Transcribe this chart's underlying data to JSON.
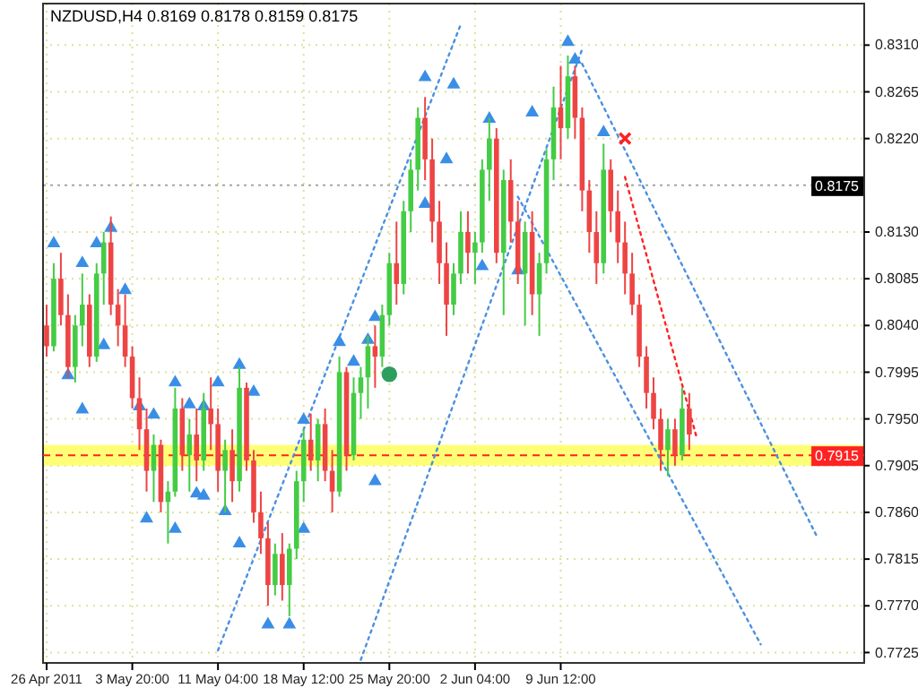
{
  "chart_data": {
    "type": "candlestick",
    "title": "NZDUSD,H4  0.8169 0.8178 0.8159 0.8175",
    "ylim": [
      0.7715,
      0.835
    ],
    "categories": [
      "26 Apr 2011",
      null,
      null,
      null,
      null,
      null,
      null,
      null,
      null,
      null,
      null,
      null,
      "3 May 20:00",
      null,
      null,
      null,
      null,
      null,
      null,
      null,
      null,
      null,
      null,
      null,
      "11 May 04:00",
      null,
      null,
      null,
      null,
      null,
      null,
      null,
      null,
      null,
      null,
      null,
      "18 May 12:00",
      null,
      null,
      null,
      null,
      null,
      null,
      null,
      null,
      null,
      null,
      null,
      "25 May 20:00",
      null,
      null,
      null,
      null,
      null,
      null,
      null,
      null,
      null,
      null,
      null,
      "2 Jun 04:00",
      null,
      null,
      null,
      null,
      null,
      null,
      null,
      null,
      null,
      null,
      null,
      "9 Jun 12:00",
      null,
      null,
      null,
      null,
      null,
      null,
      null,
      null,
      null,
      null,
      null,
      null,
      null,
      null,
      null,
      null,
      null,
      null,
      null,
      null,
      null,
      null,
      null,
      null,
      null,
      null,
      null,
      null,
      null,
      null,
      null,
      null,
      null,
      null,
      null,
      null,
      null,
      null,
      null,
      null,
      null,
      null
    ],
    "yticks": [
      {
        "value": 0.831,
        "label": "0.8310"
      },
      0.8265,
      {
        "value": 0.822,
        "label": "0.8220"
      },
      {
        "value": 0.813,
        "label": "0.8130"
      },
      0.8085,
      {
        "value": 0.804,
        "label": "0.8040"
      },
      0.7995,
      {
        "value": 0.795,
        "label": "0.7950"
      },
      0.7905,
      {
        "value": 0.786,
        "label": "0.7860"
      },
      0.7815,
      {
        "value": 0.777,
        "label": "0.7770"
      },
      0.7725
    ],
    "grid": true,
    "ohlc": [
      [
        0.804,
        0.806,
        0.801,
        0.802
      ],
      [
        0.802,
        0.81,
        0.8015,
        0.8085
      ],
      [
        0.8085,
        0.811,
        0.804,
        0.805
      ],
      [
        0.805,
        0.807,
        0.799,
        0.8
      ],
      [
        0.8,
        0.805,
        0.7985,
        0.804
      ],
      [
        0.804,
        0.809,
        0.802,
        0.806
      ],
      [
        0.806,
        0.807,
        0.8,
        0.801
      ],
      [
        0.801,
        0.81,
        0.8005,
        0.809
      ],
      [
        0.809,
        0.813,
        0.806,
        0.812
      ],
      [
        0.812,
        0.8145,
        0.805,
        0.806
      ],
      [
        0.806,
        0.8075,
        0.802,
        0.804
      ],
      [
        0.804,
        0.807,
        0.8,
        0.801
      ],
      [
        0.801,
        0.802,
        0.796,
        0.797
      ],
      [
        0.797,
        0.799,
        0.792,
        0.794
      ],
      [
        0.794,
        0.796,
        0.788,
        0.79
      ],
      [
        0.79,
        0.7935,
        0.787,
        0.7925
      ],
      [
        0.7925,
        0.793,
        0.786,
        0.787
      ],
      [
        0.787,
        0.789,
        0.783,
        0.788
      ],
      [
        0.788,
        0.798,
        0.7875,
        0.796
      ],
      [
        0.796,
        0.797,
        0.79,
        0.7915
      ],
      [
        0.7915,
        0.795,
        0.788,
        0.7935
      ],
      [
        0.7935,
        0.796,
        0.789,
        0.791
      ],
      [
        0.791,
        0.7975,
        0.79,
        0.796
      ],
      [
        0.796,
        0.799,
        0.792,
        0.7945
      ],
      [
        0.7945,
        0.796,
        0.788,
        0.79
      ],
      [
        0.79,
        0.793,
        0.786,
        0.792
      ],
      [
        0.792,
        0.794,
        0.787,
        0.789
      ],
      [
        0.789,
        0.8,
        0.788,
        0.798
      ],
      [
        0.798,
        0.7985,
        0.79,
        0.791
      ],
      [
        0.791,
        0.792,
        0.785,
        0.786
      ],
      [
        0.786,
        0.788,
        0.782,
        0.7835
      ],
      [
        0.7835,
        0.785,
        0.777,
        0.779
      ],
      [
        0.779,
        0.783,
        0.778,
        0.782
      ],
      [
        0.782,
        0.784,
        0.7775,
        0.779
      ],
      [
        0.779,
        0.783,
        0.776,
        0.7825
      ],
      [
        0.7825,
        0.79,
        0.7815,
        0.789
      ],
      [
        0.789,
        0.794,
        0.787,
        0.793
      ],
      [
        0.793,
        0.7955,
        0.79,
        0.791
      ],
      [
        0.791,
        0.795,
        0.789,
        0.7945
      ],
      [
        0.7945,
        0.796,
        0.789,
        0.79
      ],
      [
        0.79,
        0.792,
        0.786,
        0.788
      ],
      [
        0.788,
        0.801,
        0.7875,
        0.7995
      ],
      [
        0.7995,
        0.8,
        0.79,
        0.7915
      ],
      [
        0.7915,
        0.799,
        0.791,
        0.7975
      ],
      [
        0.7975,
        0.8,
        0.795,
        0.799
      ],
      [
        0.799,
        0.803,
        0.796,
        0.802
      ],
      [
        0.802,
        0.804,
        0.798,
        0.801
      ],
      [
        0.801,
        0.806,
        0.8,
        0.805
      ],
      [
        0.805,
        0.811,
        0.804,
        0.81
      ],
      [
        0.81,
        0.814,
        0.806,
        0.808
      ],
      [
        0.808,
        0.816,
        0.807,
        0.815
      ],
      [
        0.815,
        0.82,
        0.813,
        0.819
      ],
      [
        0.819,
        0.825,
        0.817,
        0.824
      ],
      [
        0.824,
        0.826,
        0.818,
        0.82
      ],
      [
        0.82,
        0.822,
        0.812,
        0.814
      ],
      [
        0.814,
        0.816,
        0.808,
        0.81
      ],
      [
        0.81,
        0.812,
        0.803,
        0.806
      ],
      [
        0.806,
        0.81,
        0.805,
        0.809
      ],
      [
        0.809,
        0.815,
        0.808,
        0.813
      ],
      [
        0.813,
        0.815,
        0.809,
        0.811
      ],
      [
        0.811,
        0.813,
        0.808,
        0.812
      ],
      [
        0.812,
        0.82,
        0.811,
        0.819
      ],
      [
        0.819,
        0.824,
        0.816,
        0.822
      ],
      [
        0.822,
        0.823,
        0.81,
        0.811
      ],
      [
        0.811,
        0.819,
        0.805,
        0.818
      ],
      [
        0.818,
        0.82,
        0.812,
        0.814
      ],
      [
        0.814,
        0.816,
        0.808,
        0.809
      ],
      [
        0.809,
        0.814,
        0.804,
        0.813
      ],
      [
        0.813,
        0.815,
        0.805,
        0.807
      ],
      [
        0.807,
        0.811,
        0.803,
        0.81
      ],
      [
        0.81,
        0.821,
        0.809,
        0.82
      ],
      [
        0.82,
        0.827,
        0.818,
        0.825
      ],
      [
        0.825,
        0.829,
        0.82,
        0.823
      ],
      [
        0.823,
        0.83,
        0.822,
        0.828
      ],
      [
        0.828,
        0.829,
        0.822,
        0.824
      ],
      [
        0.824,
        0.825,
        0.815,
        0.817
      ],
      [
        0.817,
        0.818,
        0.811,
        0.813
      ],
      [
        0.813,
        0.815,
        0.808,
        0.81
      ],
      [
        0.81,
        0.8215,
        0.809,
        0.819
      ],
      [
        0.819,
        0.82,
        0.813,
        0.815
      ],
      [
        0.815,
        0.817,
        0.81,
        0.812
      ],
      [
        0.812,
        0.814,
        0.807,
        0.809
      ],
      [
        0.809,
        0.811,
        0.805,
        0.806
      ],
      [
        0.806,
        0.807,
        0.8,
        0.801
      ],
      [
        0.801,
        0.802,
        0.796,
        0.7975
      ],
      [
        0.7975,
        0.799,
        0.794,
        0.795
      ],
      [
        0.795,
        0.796,
        0.79,
        0.792
      ],
      [
        0.792,
        0.795,
        0.7895,
        0.794
      ],
      [
        0.794,
        0.795,
        0.7905,
        0.7915
      ],
      [
        0.7915,
        0.798,
        0.791,
        0.796
      ],
      [
        0.796,
        0.7975,
        0.792,
        0.7935
      ],
      null,
      null,
      null,
      null,
      null,
      null,
      null,
      null,
      null,
      null,
      null,
      null,
      null,
      null,
      null,
      null,
      null,
      null,
      null,
      null,
      null,
      null,
      null,
      null
    ],
    "colors": [
      "#ee4444",
      "#44cc44",
      "#ee4444",
      "#ee4444",
      "#44cc44",
      "#44cc44",
      "#ee4444",
      "#44cc44",
      "#44cc44",
      "#ee4444",
      "#ee4444",
      "#ee4444",
      "#ee4444",
      "#ee4444",
      "#ee4444",
      "#44cc44",
      "#ee4444",
      "#44cc44",
      "#44cc44",
      "#ee4444",
      "#44cc44",
      "#ee4444",
      "#44cc44",
      "#ee4444",
      "#ee4444",
      "#44cc44",
      "#ee4444",
      "#44cc44",
      "#ee4444",
      "#ee4444",
      "#ee4444",
      "#ee4444",
      "#44cc44",
      "#ee4444",
      "#44cc44",
      "#44cc44",
      "#44cc44",
      "#ee4444",
      "#44cc44",
      "#ee4444",
      "#ee4444",
      "#44cc44",
      "#ee4444",
      "#44cc44",
      "#44cc44",
      "#44cc44",
      "#ee4444",
      "#44cc44",
      "#44cc44",
      "#ee4444",
      "#44cc44",
      "#44cc44",
      "#44cc44",
      "#ee4444",
      "#ee4444",
      "#ee4444",
      "#ee4444",
      "#44cc44",
      "#44cc44",
      "#ee4444",
      "#44cc44",
      "#44cc44",
      "#44cc44",
      "#ee4444",
      "#44cc44",
      "#ee4444",
      "#ee4444",
      "#44cc44",
      "#ee4444",
      "#44cc44",
      "#44cc44",
      "#44cc44",
      "#ee4444",
      "#44cc44",
      "#ee4444",
      "#ee4444",
      "#ee4444",
      "#ee4444",
      "#44cc44",
      "#ee4444",
      "#ee4444",
      "#ee4444",
      "#ee4444",
      "#ee4444",
      "#ee4444",
      "#ee4444",
      "#ee4444",
      "#44cc44",
      "#ee4444",
      "#44cc44",
      "#ee4444",
      null,
      null,
      null,
      null,
      null,
      null,
      null,
      null,
      null,
      null,
      null,
      null,
      null,
      null,
      null,
      null,
      null,
      null,
      null,
      null,
      null,
      null,
      null,
      null
    ],
    "series": [
      {
        "type": "line",
        "color": "#4a90e2",
        "line_style": "dotted",
        "values": [
          null,
          null,
          null,
          null,
          null,
          null,
          null,
          null,
          null,
          null,
          null,
          null,
          null,
          null,
          null,
          null,
          null,
          null,
          null,
          null,
          null,
          null,
          null,
          null,
          0.7727,
          null,
          null,
          null,
          null,
          null,
          null,
          null,
          null,
          null,
          null,
          null,
          null,
          null,
          null,
          null,
          null,
          null,
          null,
          null,
          null,
          null,
          null,
          null,
          null,
          null,
          null,
          null,
          null,
          null,
          null,
          null,
          null,
          null,
          0.833,
          null,
          null,
          null,
          null,
          null,
          null,
          null,
          null,
          null,
          null,
          null,
          null,
          null,
          null,
          null,
          null,
          null,
          null,
          null,
          null,
          null,
          null,
          null,
          null,
          null,
          null,
          null,
          null,
          null,
          null,
          null,
          null,
          null,
          null,
          null,
          null,
          null,
          null,
          null,
          null,
          null,
          null,
          null,
          null,
          null,
          null,
          null,
          null,
          null,
          null,
          null,
          null,
          null,
          null,
          null,
          null
        ]
      },
      {
        "type": "line",
        "color": "#4a90e2",
        "line_style": "dotted",
        "values": [
          null,
          null,
          null,
          null,
          null,
          null,
          null,
          null,
          null,
          null,
          null,
          null,
          null,
          null,
          null,
          null,
          null,
          null,
          null,
          null,
          null,
          null,
          null,
          null,
          null,
          null,
          null,
          null,
          null,
          null,
          null,
          null,
          null,
          null,
          null,
          null,
          null,
          null,
          null,
          null,
          null,
          null,
          null,
          null,
          0.7718,
          null,
          null,
          null,
          null,
          null,
          null,
          null,
          null,
          null,
          null,
          null,
          null,
          null,
          null,
          null,
          null,
          null,
          null,
          null,
          null,
          null,
          null,
          null,
          null,
          null,
          null,
          null,
          null,
          null,
          null,
          0.8306,
          null,
          null,
          null,
          null,
          null,
          null,
          null,
          null,
          null,
          null,
          null,
          null,
          null,
          null,
          null,
          null,
          null,
          null,
          null,
          null,
          null,
          null,
          null,
          null,
          null,
          null,
          null,
          null,
          null,
          null,
          null,
          null,
          null,
          null,
          null,
          null,
          null,
          null,
          null
        ]
      },
      {
        "type": "line",
        "color": "#4a90e2",
        "line_style": "dotted",
        "values": [
          null,
          null,
          null,
          null,
          null,
          null,
          null,
          null,
          null,
          null,
          null,
          null,
          null,
          null,
          null,
          null,
          null,
          null,
          null,
          null,
          null,
          null,
          null,
          null,
          null,
          null,
          null,
          null,
          null,
          null,
          null,
          null,
          null,
          null,
          null,
          null,
          null,
          null,
          null,
          null,
          null,
          null,
          null,
          null,
          null,
          null,
          null,
          null,
          null,
          null,
          null,
          null,
          null,
          null,
          null,
          null,
          null,
          null,
          null,
          null,
          null,
          null,
          null,
          null,
          null,
          null,
          null,
          null,
          null,
          null,
          null,
          null,
          null,
          null,
          null,
          0.8292,
          null,
          null,
          null,
          null,
          null,
          null,
          null,
          null,
          null,
          null,
          null,
          null,
          null,
          null,
          null,
          null,
          null,
          null,
          null,
          null,
          null,
          null,
          null,
          null,
          null,
          null,
          null,
          null,
          null,
          null,
          null,
          null,
          0.7835,
          null,
          null,
          null,
          null,
          null,
          null
        ]
      },
      {
        "type": "line",
        "color": "#4a90e2",
        "line_style": "dotted",
        "values": [
          null,
          null,
          null,
          null,
          null,
          null,
          null,
          null,
          null,
          null,
          null,
          null,
          null,
          null,
          null,
          null,
          null,
          null,
          null,
          null,
          null,
          null,
          null,
          null,
          null,
          null,
          null,
          null,
          null,
          null,
          null,
          null,
          null,
          null,
          null,
          null,
          null,
          null,
          null,
          null,
          null,
          null,
          null,
          null,
          null,
          null,
          null,
          null,
          null,
          null,
          null,
          null,
          null,
          null,
          null,
          null,
          null,
          null,
          null,
          null,
          null,
          null,
          null,
          null,
          null,
          null,
          0.8164,
          null,
          null,
          null,
          null,
          null,
          null,
          null,
          null,
          null,
          null,
          null,
          null,
          null,
          null,
          null,
          null,
          null,
          null,
          null,
          null,
          null,
          null,
          null,
          null,
          null,
          null,
          null,
          null,
          null,
          null,
          null,
          null,
          null,
          0.7733,
          null,
          null,
          null,
          null,
          null,
          null,
          null,
          null,
          null,
          null,
          null,
          null,
          null,
          null
        ]
      },
      {
        "type": "line",
        "color": "#ff2222",
        "line_style": "dotted",
        "values": [
          null,
          null,
          null,
          null,
          null,
          null,
          null,
          null,
          null,
          null,
          null,
          null,
          null,
          null,
          null,
          null,
          null,
          null,
          null,
          null,
          null,
          null,
          null,
          null,
          null,
          null,
          null,
          null,
          null,
          null,
          null,
          null,
          null,
          null,
          null,
          null,
          null,
          null,
          null,
          null,
          null,
          null,
          null,
          null,
          null,
          null,
          null,
          null,
          null,
          null,
          null,
          null,
          null,
          null,
          null,
          null,
          null,
          null,
          null,
          null,
          null,
          null,
          null,
          null,
          null,
          null,
          null,
          null,
          null,
          null,
          null,
          null,
          null,
          null,
          null,
          null,
          null,
          null,
          null,
          null,
          null,
          0.8183,
          null,
          null,
          null,
          null,
          null,
          null,
          null,
          null,
          null,
          0.7933,
          null,
          null,
          null,
          null,
          null,
          null,
          null,
          null,
          null,
          null,
          null,
          null,
          null,
          null,
          null,
          null,
          null,
          null,
          null,
          null,
          null,
          null,
          null
        ]
      },
      {
        "type": "scatter",
        "color": "#3a8ee6",
        "marker": "triangle",
        "values": [
          null,
          0.8119,
          null,
          null,
          null,
          0.81,
          null,
          0.8119,
          null,
          0.8134,
          null,
          0.8074,
          null,
          0.7962,
          null,
          0.7954,
          null,
          null,
          0.7985,
          null,
          0.7964,
          null,
          0.7962,
          null,
          0.7985,
          null,
          null,
          0.8002,
          null,
          0.7976,
          null,
          null,
          null,
          null,
          null,
          null,
          0.7949,
          null,
          null,
          null,
          null,
          0.8024,
          null,
          0.8005,
          null,
          0.8026,
          0.8048,
          null,
          null,
          null,
          null,
          null,
          null,
          0.8279,
          null,
          null,
          0.82,
          0.8272,
          null,
          null,
          null,
          null,
          0.8239,
          null,
          null,
          null,
          null,
          null,
          0.8245,
          null,
          null,
          null,
          null,
          0.8313,
          0.8296,
          null,
          null,
          null,
          0.8226,
          null,
          null,
          null,
          null,
          null,
          null,
          null,
          null,
          null,
          null,
          null,
          null,
          null,
          null,
          null,
          null,
          null,
          null,
          null,
          null,
          null,
          null,
          null,
          null,
          null,
          null,
          null,
          null,
          null,
          null,
          null,
          null,
          null,
          null,
          null,
          null
        ]
      },
      {
        "type": "scatter",
        "color": "#3a8ee6",
        "marker": "triangle",
        "values": [
          null,
          null,
          null,
          0.7992,
          null,
          0.7959,
          null,
          null,
          0.8021,
          null,
          null,
          null,
          null,
          null,
          0.7854,
          null,
          null,
          null,
          0.7844,
          null,
          null,
          0.7878,
          0.7876,
          null,
          null,
          0.7861,
          null,
          0.783,
          null,
          null,
          null,
          0.7752,
          null,
          null,
          0.7752,
          null,
          0.7844,
          null,
          null,
          null,
          null,
          null,
          null,
          null,
          null,
          null,
          0.789,
          null,
          null,
          null,
          null,
          null,
          null,
          0.8157,
          null,
          null,
          null,
          null,
          null,
          null,
          null,
          0.8097,
          null,
          null,
          null,
          null,
          0.8093,
          null,
          null,
          null,
          null,
          null,
          null,
          null,
          null,
          null,
          null,
          null,
          null,
          null,
          null,
          null,
          null,
          null,
          null,
          null,
          null,
          null,
          null,
          null,
          null,
          null,
          null,
          null,
          null,
          null,
          null,
          null,
          null,
          null,
          null,
          null,
          null,
          null,
          null,
          null,
          null,
          null,
          null,
          null,
          null,
          null,
          null,
          null,
          null
        ]
      },
      {
        "type": "scatter",
        "color": "#ff2222",
        "marker": "cross",
        "values": [
          null,
          null,
          null,
          null,
          null,
          null,
          null,
          null,
          null,
          null,
          null,
          null,
          null,
          null,
          null,
          null,
          null,
          null,
          null,
          null,
          null,
          null,
          null,
          null,
          null,
          null,
          null,
          null,
          null,
          null,
          null,
          null,
          null,
          null,
          null,
          null,
          null,
          null,
          null,
          null,
          null,
          null,
          null,
          null,
          null,
          null,
          null,
          null,
          null,
          null,
          null,
          null,
          null,
          null,
          null,
          null,
          null,
          null,
          null,
          null,
          null,
          null,
          null,
          null,
          null,
          null,
          null,
          null,
          null,
          null,
          null,
          null,
          null,
          null,
          null,
          null,
          null,
          null,
          null,
          null,
          null,
          0.822,
          null,
          null,
          null,
          null,
          null,
          null,
          null,
          null,
          null,
          null,
          null,
          null,
          null,
          null,
          null,
          null,
          null,
          null,
          null,
          null,
          null,
          null,
          null,
          null,
          null,
          null,
          null,
          null,
          null,
          null,
          null,
          null,
          null
        ]
      },
      {
        "type": "scatter",
        "color": "#2e9e5e",
        "marker": "circle",
        "values": [
          null,
          null,
          null,
          null,
          null,
          null,
          null,
          null,
          null,
          null,
          null,
          null,
          null,
          null,
          null,
          null,
          null,
          null,
          null,
          null,
          null,
          null,
          null,
          null,
          null,
          null,
          null,
          null,
          null,
          null,
          null,
          null,
          null,
          null,
          null,
          null,
          null,
          null,
          null,
          null,
          null,
          null,
          null,
          null,
          null,
          null,
          null,
          null,
          0.7993,
          null,
          null,
          null,
          null,
          null,
          null,
          null,
          null,
          null,
          null,
          null,
          null,
          null,
          null,
          null,
          null,
          null,
          null,
          null,
          null,
          null,
          null,
          null,
          null,
          null,
          null,
          null,
          null,
          null,
          null,
          null,
          null,
          null,
          null,
          null,
          null,
          null,
          null,
          null,
          null,
          null,
          null,
          null,
          null,
          null,
          null,
          null,
          null,
          null,
          null,
          null,
          null,
          null,
          null,
          null,
          null,
          null,
          null,
          null,
          null,
          null,
          null,
          null,
          null,
          null,
          null
        ]
      }
    ],
    "ref_lines": [
      {
        "axis": "y",
        "value": 0.7915,
        "label": "0.7915",
        "color": "#ff2222",
        "line_style": "dashed"
      },
      {
        "axis": "y",
        "value": 0.8175,
        "label": "0.8175",
        "color": "#000000",
        "line_style": "dotted"
      }
    ],
    "bands": [
      {
        "axis": "y",
        "from": 0.7905,
        "to": 0.7925,
        "color": "#ffff55"
      }
    ]
  }
}
